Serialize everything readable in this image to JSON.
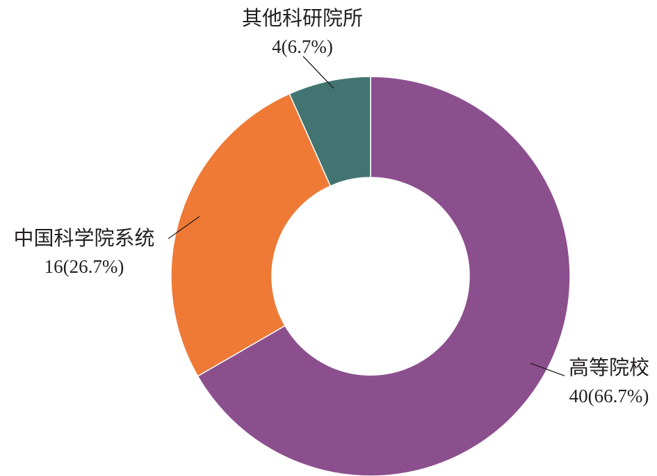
{
  "chart_data": {
    "type": "pie",
    "variant": "donut",
    "title": "",
    "slices": [
      {
        "label": "高等院校",
        "value": 40,
        "percent_text": "40(66.7%)",
        "color": "#8c4f8e"
      },
      {
        "label": "中国科学院系统",
        "value": 16,
        "percent_text": "16(26.7%)",
        "color": "#ee7a36"
      },
      {
        "label": "其他科研院所",
        "value": 4,
        "percent_text": "4(6.7%)",
        "color": "#427571"
      }
    ],
    "legend": "none",
    "label_style": "outside labels with leader lines"
  }
}
